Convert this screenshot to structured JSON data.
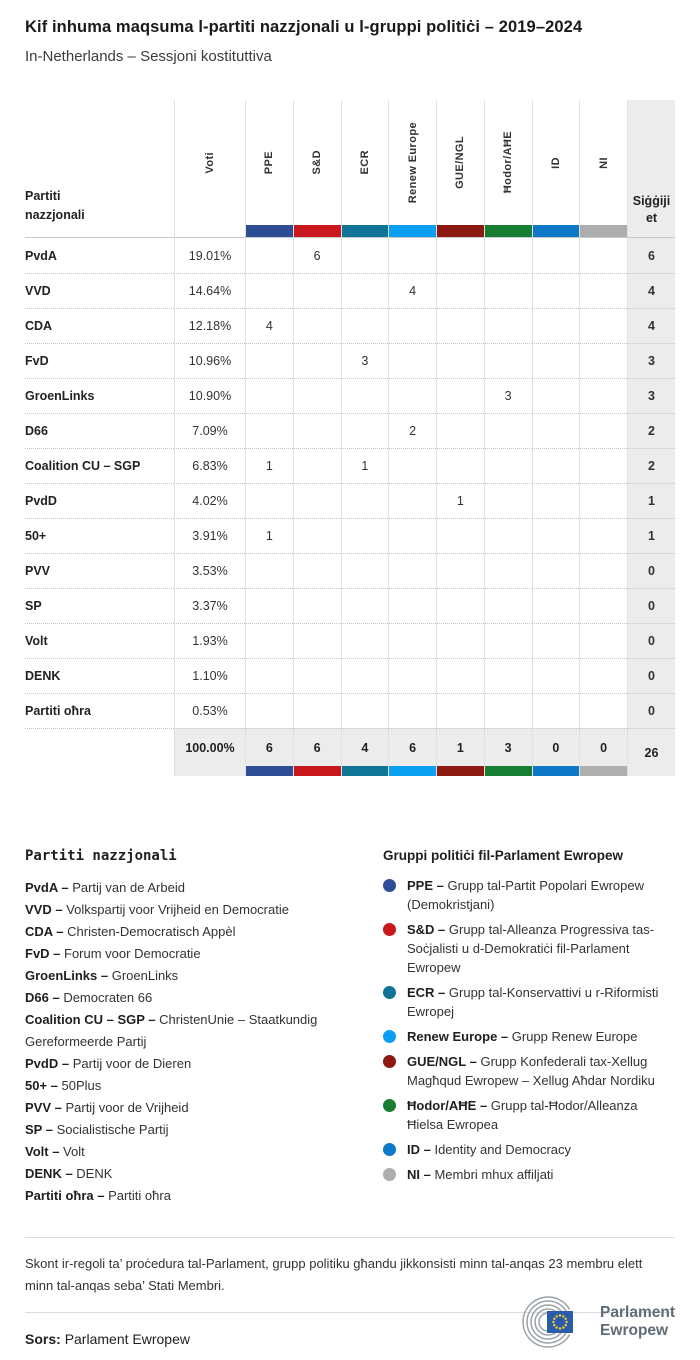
{
  "chart_data": {
    "type": "table",
    "title": "Kif inhuma maqsuma l-partiti nazzjonali u l-gruppi politiċi – 2019–2024",
    "subtitle": "In-Netherlands – Sessjoni kostituttiva",
    "group_columns": [
      "PPE",
      "S&D",
      "ECR",
      "Renew Europe",
      "GUE/NGL",
      "Ħodor/AĦE",
      "ID",
      "NI"
    ],
    "group_colors": [
      "#2e4d96",
      "#c8171d",
      "#0f7496",
      "#0b9ff2",
      "#8c1a12",
      "#167d33",
      "#0d78c8",
      "#aeaeae"
    ],
    "rows": [
      {
        "party": "PvdA",
        "votes": "19.01%",
        "seats": [
          "",
          "6",
          "",
          "",
          "",
          "",
          "",
          ""
        ],
        "total": "6"
      },
      {
        "party": "VVD",
        "votes": "14.64%",
        "seats": [
          "",
          "",
          "",
          "4",
          "",
          "",
          "",
          ""
        ],
        "total": "4"
      },
      {
        "party": "CDA",
        "votes": "12.18%",
        "seats": [
          "4",
          "",
          "",
          "",
          "",
          "",
          "",
          ""
        ],
        "total": "4"
      },
      {
        "party": "FvD",
        "votes": "10.96%",
        "seats": [
          "",
          "",
          "3",
          "",
          "",
          "",
          "",
          ""
        ],
        "total": "3"
      },
      {
        "party": "GroenLinks",
        "votes": "10.90%",
        "seats": [
          "",
          "",
          "",
          "",
          "",
          "3",
          "",
          ""
        ],
        "total": "3"
      },
      {
        "party": "D66",
        "votes": "7.09%",
        "seats": [
          "",
          "",
          "",
          "2",
          "",
          "",
          "",
          ""
        ],
        "total": "2"
      },
      {
        "party": "Coalition CU – SGP",
        "votes": "6.83%",
        "seats": [
          "1",
          "",
          "1",
          "",
          "",
          "",
          "",
          ""
        ],
        "total": "2"
      },
      {
        "party": "PvdD",
        "votes": "4.02%",
        "seats": [
          "",
          "",
          "",
          "",
          "1",
          "",
          "",
          ""
        ],
        "total": "1"
      },
      {
        "party": "50+",
        "votes": "3.91%",
        "seats": [
          "1",
          "",
          "",
          "",
          "",
          "",
          "",
          ""
        ],
        "total": "1"
      },
      {
        "party": "PVV",
        "votes": "3.53%",
        "seats": [
          "",
          "",
          "",
          "",
          "",
          "",
          "",
          ""
        ],
        "total": "0"
      },
      {
        "party": "SP",
        "votes": "3.37%",
        "seats": [
          "",
          "",
          "",
          "",
          "",
          "",
          "",
          ""
        ],
        "total": "0"
      },
      {
        "party": "Volt",
        "votes": "1.93%",
        "seats": [
          "",
          "",
          "",
          "",
          "",
          "",
          "",
          ""
        ],
        "total": "0"
      },
      {
        "party": "DENK",
        "votes": "1.10%",
        "seats": [
          "",
          "",
          "",
          "",
          "",
          "",
          "",
          ""
        ],
        "total": "0"
      },
      {
        "party": "Partiti oħra",
        "votes": "0.53%",
        "seats": [
          "",
          "",
          "",
          "",
          "",
          "",
          "",
          ""
        ],
        "total": "0"
      }
    ],
    "totals": {
      "votes": "100.00%",
      "seats": [
        "6",
        "6",
        "4",
        "6",
        "1",
        "3",
        "0",
        "0"
      ],
      "total": "26"
    }
  },
  "table": {
    "first_col_header": "Partiti nazzjonali",
    "voti_header": "Voti",
    "seats_header": "Siġġijiet"
  },
  "legend_parties": {
    "heading": "Partiti nazzjonali",
    "items": [
      {
        "abbr": "PvdA",
        "name": "Partij van de Arbeid"
      },
      {
        "abbr": "VVD",
        "name": "Volkspartij voor Vrijheid en Democratie"
      },
      {
        "abbr": "CDA",
        "name": "Christen-Democratisch Appèl"
      },
      {
        "abbr": "FvD",
        "name": "Forum voor Democratie"
      },
      {
        "abbr": "GroenLinks",
        "name": "GroenLinks"
      },
      {
        "abbr": "D66",
        "name": "Democraten 66"
      },
      {
        "abbr": "Coalition CU – SGP",
        "name": "ChristenUnie – Staatkundig Gereformeerde Partij"
      },
      {
        "abbr": "PvdD",
        "name": "Partij voor de Dieren"
      },
      {
        "abbr": "50+",
        "name": "50Plus"
      },
      {
        "abbr": "PVV",
        "name": "Partij voor de Vrijheid"
      },
      {
        "abbr": "SP",
        "name": "Socialistische Partij"
      },
      {
        "abbr": "Volt",
        "name": "Volt"
      },
      {
        "abbr": "DENK",
        "name": "DENK"
      },
      {
        "abbr": "Partiti oħra",
        "name": "Partiti oħra"
      }
    ]
  },
  "legend_groups": {
    "heading": "Gruppi politiċi fil-Parlament Ewropew",
    "items": [
      {
        "abbr": "PPE",
        "name": "Grupp tal-Partit Popolari Ewropew (Demokristjani)",
        "color": "#2e4d96"
      },
      {
        "abbr": "S&D",
        "name": "Grupp tal-Alleanza Progressiva tas-Soċjalisti u d-Demokratiċi fil-Parlament Ewropew",
        "color": "#c8171d"
      },
      {
        "abbr": "ECR",
        "name": "Grupp tal-Konservattivi u r-Riformisti Ewropej",
        "color": "#0f7496"
      },
      {
        "abbr": "Renew Europe",
        "name": "Grupp Renew Europe",
        "color": "#0b9ff2"
      },
      {
        "abbr": "GUE/NGL",
        "name": "Grupp Konfederali tax-Xellug Magħqud Ewropew – Xellug Aħdar Nordiku",
        "color": "#8c1a12"
      },
      {
        "abbr": "Ħodor/AĦE",
        "name": "Grupp tal-Ħodor/Alleanza Ħielsa Ewropea",
        "color": "#167d33"
      },
      {
        "abbr": "ID",
        "name": "Identity and Democracy",
        "color": "#0d78c8"
      },
      {
        "abbr": "NI",
        "name": "Membri mhux affiljati",
        "color": "#aeaeae"
      }
    ]
  },
  "note": "Skont ir-regoli ta’ proċedura tal-Parlament, grupp politiku għandu jikkonsisti minn tal-anqas 23 membru elett minn tal-anqas seba’ Stati Membri.",
  "source": {
    "label": "Sors:",
    "value": "Parlament Ewropew",
    "logo_line1": "Parlament",
    "logo_line2": "Ewropew"
  }
}
